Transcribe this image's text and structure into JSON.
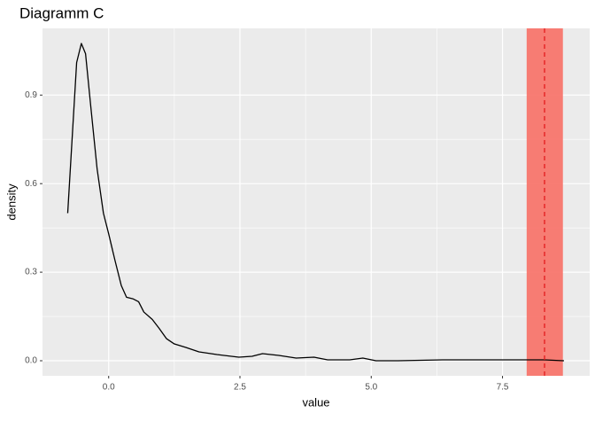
{
  "chart_data": {
    "type": "line",
    "title": "Diagramm C",
    "x_label": "value",
    "y_label": "density",
    "x": [
      -0.78,
      -0.69,
      -0.61,
      -0.52,
      -0.44,
      -0.34,
      -0.22,
      -0.1,
      0.0,
      0.12,
      0.24,
      0.34,
      0.46,
      0.57,
      0.67,
      0.83,
      0.96,
      1.1,
      1.25,
      1.47,
      1.72,
      2.06,
      2.48,
      2.73,
      2.93,
      3.24,
      3.57,
      3.91,
      4.17,
      4.59,
      4.84,
      5.09,
      5.51,
      6.36,
      7.2,
      7.88,
      8.3,
      8.67
    ],
    "values": [
      0.5,
      0.77,
      1.01,
      1.075,
      1.04,
      0.86,
      0.65,
      0.5,
      0.43,
      0.34,
      0.255,
      0.215,
      0.21,
      0.2,
      0.165,
      0.14,
      0.11,
      0.075,
      0.057,
      0.045,
      0.03,
      0.021,
      0.012,
      0.015,
      0.024,
      0.018,
      0.009,
      0.012,
      0.003,
      0.003,
      0.009,
      0,
      0,
      0.003,
      0.003,
      0.003,
      0.003,
      0
    ],
    "color": "#000000",
    "highlight": {
      "xmin": 7.96,
      "xmax": 8.65,
      "color": "#f8766d"
    },
    "vline": {
      "x": 8.3,
      "color": "#e41a1c"
    },
    "xlim": [
      -1.26,
      9.16
    ],
    "ylim": [
      -0.051,
      1.126
    ],
    "xticks": [
      {
        "value": 0,
        "label": "0.0"
      },
      2.5,
      {
        "value": 5,
        "label": "5.0"
      },
      7.5
    ],
    "yticks": [
      {
        "value": 0,
        "label": "0.0"
      },
      0.3,
      0.6,
      0.9
    ],
    "grid": true
  }
}
